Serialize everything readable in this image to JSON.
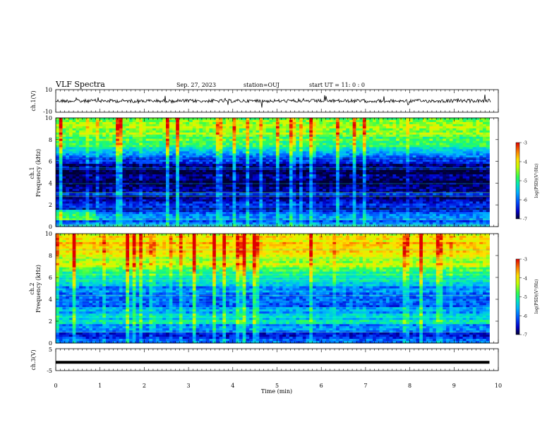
{
  "header": {
    "title": "VLF Spectra",
    "date": "Sep. 27, 2023",
    "station": "station=OUJ",
    "start": "start  UT =   11: 0  : 0"
  },
  "colorbar": {
    "label": "log(PSD)(V²/Hz)",
    "ticks": [
      "-3",
      "-4",
      "-5",
      "-6",
      "-7"
    ],
    "range": [
      -7,
      -3
    ],
    "colors": [
      "#000033",
      "#0000c8",
      "#0050ff",
      "#00b4ff",
      "#00e8c0",
      "#30ff50",
      "#c8ff00",
      "#ffe000",
      "#ff8000",
      "#e00000"
    ]
  },
  "chart_data": [
    {
      "type": "line",
      "panel": "ch1-waveform",
      "ylabel": "ch.1(V)",
      "ylim": [
        -10,
        10
      ],
      "yticks": [
        "10",
        "-10"
      ],
      "xlim": [
        0,
        10
      ],
      "description_level_V": 0,
      "amplitude_V": 1.5
    },
    {
      "type": "heatmap",
      "panel": "ch1-spectrogram",
      "ylabel": "ch.1\nFrequency (kHz)",
      "ylabel_line1": "ch.1",
      "ylabel_line2": "Frequency (kHz)",
      "ylim": [
        0,
        10
      ],
      "yticks": [
        "10",
        "8",
        "6",
        "4",
        "2",
        "0"
      ],
      "xlim": [
        0,
        9.8
      ],
      "zlim": [
        -7,
        -3
      ],
      "profile_freq_khz": [
        0,
        0.5,
        1,
        1.5,
        2,
        2.5,
        3,
        3.5,
        4,
        4.5,
        5,
        5.5,
        6,
        6.5,
        7,
        7.5,
        8,
        8.5,
        9,
        9.5,
        10
      ],
      "profile_log_psd": [
        -5.6,
        -6.2,
        -5.8,
        -6.5,
        -6.3,
        -6.7,
        -6.5,
        -6.6,
        -6.9,
        -6.8,
        -6.9,
        -6.7,
        -6.4,
        -6.0,
        -5.3,
        -5.0,
        -4.8,
        -4.6,
        -4.5,
        -4.4,
        -4.5
      ]
    },
    {
      "type": "heatmap",
      "panel": "ch2-spectrogram",
      "ylabel": "ch.2\nFrequency (kHz)",
      "ylabel_line1": "ch.2",
      "ylabel_line2": "Frequency (kHz)",
      "ylim": [
        0,
        10
      ],
      "yticks": [
        "10",
        "8",
        "6",
        "4",
        "2",
        "0"
      ],
      "xlim": [
        0,
        9.8
      ],
      "zlim": [
        -7,
        -3
      ],
      "profile_freq_khz": [
        0,
        0.5,
        1,
        1.5,
        2,
        2.5,
        3,
        3.5,
        4,
        4.5,
        5,
        5.5,
        6,
        6.5,
        7,
        7.5,
        8,
        8.5,
        9,
        9.5,
        10
      ],
      "profile_log_psd": [
        -6.0,
        -6.4,
        -6.2,
        -5.8,
        -5.3,
        -5.4,
        -5.8,
        -6.0,
        -6.0,
        -5.9,
        -5.8,
        -5.5,
        -5.2,
        -4.9,
        -4.4,
        -4.3,
        -4.1,
        -4.0,
        -3.9,
        -3.9,
        -4.0
      ]
    },
    {
      "type": "line",
      "panel": "ch3-waveform",
      "ylabel": "ch.3(V)",
      "ylim": [
        -5,
        5
      ],
      "yticks": [
        "5",
        "-5"
      ],
      "xlim": [
        0,
        9.8
      ],
      "level_V": -1.2
    }
  ],
  "xaxis": {
    "label": "Time  (min)",
    "ticks": [
      "0",
      "1",
      "2",
      "3",
      "4",
      "5",
      "6",
      "7",
      "8",
      "9",
      "10"
    ],
    "range": [
      0,
      10
    ]
  }
}
